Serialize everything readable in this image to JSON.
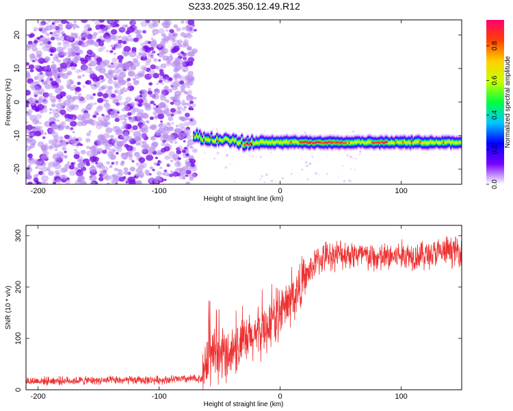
{
  "title": "S233.2025.350.12.49.R12",
  "chart_data": [
    {
      "type": "heatmap",
      "title": "S233.2025.350.12.49.R12",
      "xlabel": "Height of straight line (km)",
      "ylabel": "Frequency (Hz)",
      "xlim": [
        -210,
        150
      ],
      "ylim": [
        -24.5,
        24.5
      ],
      "x_ticks": [
        -200,
        -100,
        0,
        100
      ],
      "y_ticks": [
        20,
        10,
        0,
        -10,
        -20
      ],
      "colorbar": {
        "label": "Normalized spectral amplitude",
        "range": [
          0,
          0.95
        ],
        "ticks": [
          "0.0",
          "0.2",
          "0.4",
          "0.6",
          "0.8"
        ],
        "colormap": [
          "#ffffff",
          "#7700ff",
          "#0000ff",
          "#00c8ff",
          "#00ff40",
          "#c8ff00",
          "#ffd000",
          "#ff4000",
          "#ff0070"
        ]
      },
      "regions": [
        {
          "name": "noise",
          "x_range": [
            -210,
            -70
          ],
          "freq_range": [
            -24.5,
            24.5
          ],
          "amplitude_range": [
            0.0,
            0.1
          ]
        },
        {
          "name": "signal",
          "x_range": [
            -72,
            150
          ],
          "center_freq": -12,
          "center_freq_near_start": -10.5,
          "band_halfwidth": 1.4,
          "peak_amplitude": 0.9
        }
      ]
    },
    {
      "type": "line",
      "xlabel": "Height of straight line (km)",
      "ylabel": "SNR (10 * v/v)",
      "xlim": [
        -210,
        150
      ],
      "ylim": [
        0,
        320
      ],
      "x_ticks": [
        -200,
        -100,
        0,
        100
      ],
      "y_ticks": [
        0,
        100,
        200,
        300
      ],
      "color": "#ee3030",
      "trend": {
        "x": [
          -210,
          -150,
          -100,
          -64,
          -62,
          -50,
          -40,
          -30,
          -20,
          -10,
          0,
          10,
          20,
          30,
          40,
          60,
          80,
          100,
          120,
          140,
          150
        ],
        "y": [
          17,
          18,
          19,
          22,
          55,
          65,
          75,
          90,
          105,
          125,
          150,
          175,
          215,
          250,
          262,
          265,
          255,
          262,
          262,
          270,
          270
        ]
      },
      "noise_amplitude": [
        10,
        60,
        35
      ]
    }
  ]
}
